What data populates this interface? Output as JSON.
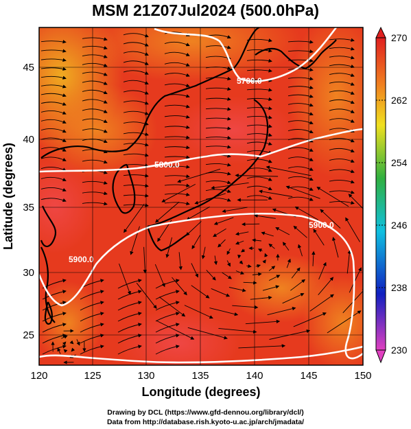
{
  "title": "MSM 21Z07Jul2024 (500.0hPa)",
  "x_axis": {
    "label": "Longitude (degrees)",
    "ticks": [
      "120",
      "125",
      "130",
      "135",
      "140",
      "145",
      "150"
    ],
    "range": [
      120,
      150
    ]
  },
  "y_axis": {
    "label": "Latitude  (degrees)",
    "ticks": [
      "25",
      "30",
      "35",
      "40",
      "45"
    ],
    "range": [
      22.5,
      47.5
    ]
  },
  "colorbar": {
    "ticks": [
      "270",
      "262",
      "254",
      "246",
      "238",
      "230"
    ],
    "range": [
      230,
      270
    ],
    "colors": [
      "#e040c0",
      "#1020c0",
      "#10c0e0",
      "#30b040",
      "#f0e020",
      "#f08020",
      "#e02020"
    ]
  },
  "contours": [
    {
      "label": "5700.0"
    },
    {
      "label": "5800.0"
    },
    {
      "label": "5900.0"
    },
    {
      "label": "5900.0"
    }
  ],
  "field_colors": {
    "warm": "#e63a1e",
    "hot": "#ef4a3a",
    "mid": "#f07a20",
    "cool": "#f0a020",
    "coast": "#000000",
    "contour": "#ffffff"
  },
  "credit": {
    "line1": "Drawing by DCL (https://www.gfd-dennou.org/library/dcl/)",
    "line2": "Data from http://database.rish.kyoto-u.ac.jp/arch/jmadata/"
  }
}
